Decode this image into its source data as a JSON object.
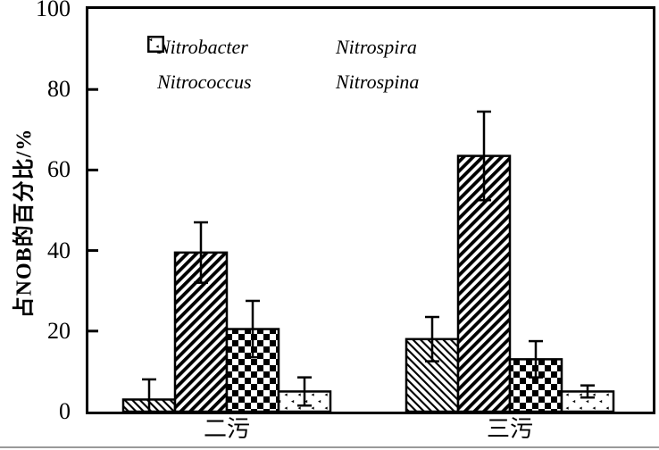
{
  "figure": {
    "background": "#ffffff",
    "ink": "#000000",
    "style": "monochrome scanned scientific figure"
  },
  "chart_data": {
    "type": "bar",
    "title": "",
    "xlabel": "",
    "ylabel": "占NOB的百分比/%",
    "ylim": [
      0,
      100
    ],
    "yticks": [
      0,
      20,
      40,
      60,
      80,
      100
    ],
    "grid": false,
    "error_bars": true,
    "categories": [
      "二污",
      "三污"
    ],
    "series": [
      {
        "name": "Nitrobacter",
        "hatch": "thin-backslash-diagonal-hatch",
        "values": [
          3,
          18
        ],
        "errors": [
          5,
          5.5
        ]
      },
      {
        "name": "Nitrospira",
        "hatch": "thick-slash-diagonal-hatch",
        "values": [
          39.5,
          63.5
        ],
        "errors": [
          7.5,
          11
        ]
      },
      {
        "name": "Nitrococcus",
        "hatch": "checkerboard",
        "values": [
          20.5,
          13
        ],
        "errors": [
          7,
          4.5
        ]
      },
      {
        "name": "Nitrospina",
        "hatch": "sparse-specks",
        "values": [
          5,
          5
        ],
        "errors": [
          3.5,
          1.5
        ]
      }
    ],
    "legend": {
      "position": "inside-top-left",
      "columns": 2,
      "order_row_major": [
        "Nitrobacter",
        "Nitrospira",
        "Nitrococcus",
        "Nitrospina"
      ]
    }
  }
}
